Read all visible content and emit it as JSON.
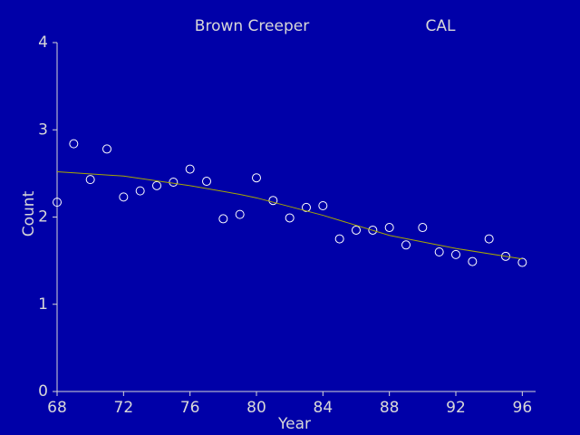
{
  "chart_data": {
    "type": "scatter",
    "title": "Brown Creeper",
    "subtitle": "CAL",
    "xlabel": "Year",
    "ylabel": "Count",
    "xlim": [
      68,
      96.8
    ],
    "ylim": [
      0,
      4
    ],
    "xticks": [
      68,
      72,
      76,
      80,
      84,
      88,
      92,
      96
    ],
    "yticks": [
      0,
      1,
      2,
      3,
      4
    ],
    "background": "#0000a8",
    "series": [
      {
        "color": "#ffffff",
        "marker": "circle",
        "x": [
          68,
          69,
          70,
          71,
          72,
          73,
          74,
          75,
          76,
          77,
          78,
          79,
          80,
          81,
          82,
          83,
          84,
          85,
          86,
          87,
          88,
          89,
          90,
          91,
          92,
          93,
          94,
          95,
          96
        ],
        "values": [
          2.17,
          2.84,
          2.43,
          2.78,
          2.23,
          2.3,
          2.36,
          2.4,
          2.55,
          2.41,
          1.98,
          2.03,
          2.45,
          2.19,
          1.99,
          2.11,
          2.13,
          1.75,
          1.85,
          1.85,
          1.88,
          1.68,
          1.88,
          1.6,
          1.57,
          1.49,
          1.75,
          1.55,
          1.48
        ]
      },
      {
        "color": "#a8a800",
        "marker": "line",
        "x": [
          68,
          72,
          76,
          79,
          80,
          84,
          88,
          92,
          96
        ],
        "values": [
          2.52,
          2.47,
          2.36,
          2.26,
          2.22,
          2.02,
          1.79,
          1.64,
          1.52
        ]
      }
    ]
  }
}
